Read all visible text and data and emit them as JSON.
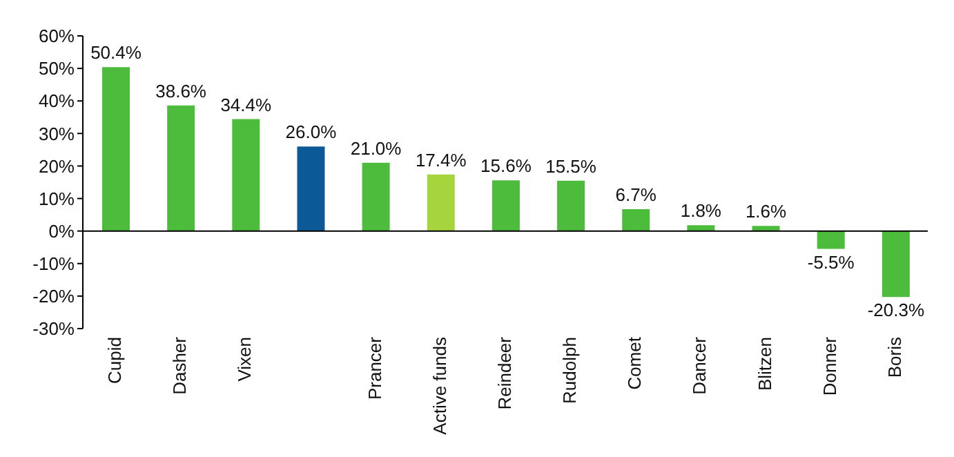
{
  "chart_data": {
    "type": "bar",
    "categories": [
      "Cupid",
      "Dasher",
      "Vixen",
      null,
      "Prancer",
      "Active funds",
      "Reindeer",
      "Rudolph",
      "Comet",
      "Dancer",
      "Blitzen",
      "Donner",
      "Boris"
    ],
    "values": [
      50.4,
      38.6,
      34.4,
      26.0,
      21.0,
      17.4,
      15.6,
      15.5,
      6.7,
      1.8,
      1.6,
      -5.5,
      -20.3
    ],
    "colors": [
      "#4dbb3b",
      "#4dbb3b",
      "#4dbb3b",
      "#0b5a97",
      "#4dbb3b",
      "#a6d43c",
      "#4dbb3b",
      "#4dbb3b",
      "#4dbb3b",
      "#4dbb3b",
      "#4dbb3b",
      "#4dbb3b",
      "#4dbb3b"
    ],
    "value_labels": [
      "50.4%",
      "38.6%",
      "34.4%",
      "26.0%",
      "21.0%",
      "17.4%",
      "15.6%",
      "15.5%",
      "6.7%",
      "1.8%",
      "1.6%",
      "-5.5%",
      "-20.3%"
    ],
    "ylim": [
      -30,
      60
    ],
    "yticks": [
      {
        "value": -30,
        "label": "-30%"
      },
      {
        "value": -20,
        "label": "-20%"
      },
      {
        "value": -10,
        "label": "-10%"
      },
      {
        "value": 0,
        "label": "0%"
      },
      {
        "value": 10,
        "label": "10%"
      },
      {
        "value": 20,
        "label": "20%"
      },
      {
        "value": 30,
        "label": "30%"
      },
      {
        "value": 40,
        "label": "40%"
      },
      {
        "value": 50,
        "label": "50%"
      },
      {
        "value": 60,
        "label": "60%"
      }
    ],
    "ref_lines": [
      {
        "axis": "y",
        "value": 0,
        "color": "#000000"
      }
    ],
    "grid": false,
    "legend": false
  }
}
